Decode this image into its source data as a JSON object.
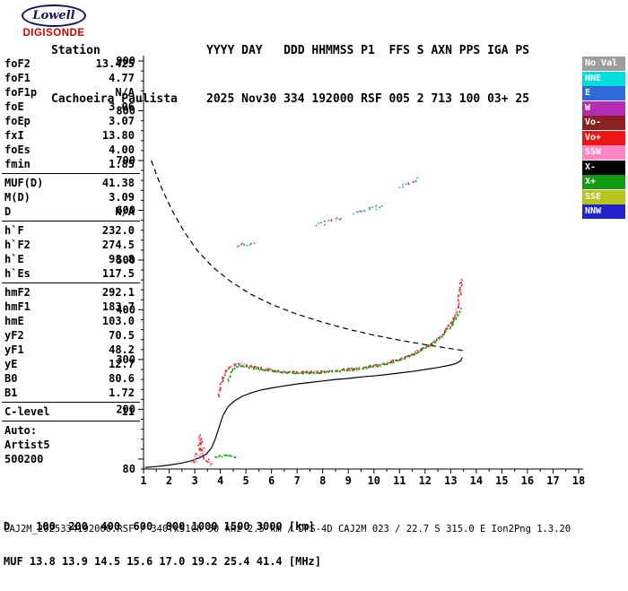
{
  "logo": {
    "brand": "Lowell",
    "product": "DIGISONDE"
  },
  "header": {
    "station_label": "Station",
    "station_name": "Cachoeira Paulista",
    "columns": [
      "YYYY",
      "DAY",
      "DDD",
      "HHMMSS",
      "P1",
      "FFS",
      "S",
      "AXN",
      "PPS",
      "IGA",
      "PS"
    ],
    "values": [
      "2025",
      "Nov30",
      "334",
      "192000",
      "RSF",
      "005",
      "2",
      "713",
      "100",
      "03+",
      "25"
    ]
  },
  "params": {
    "groups": [
      {
        "name": "frequencies",
        "rows": [
          [
            "foF2",
            "13.425"
          ],
          [
            "foF1",
            "4.77"
          ],
          [
            "foF1p",
            "N/A"
          ],
          [
            "foE",
            "3.06"
          ],
          [
            "foEp",
            "3.07"
          ],
          [
            "fxI",
            "13.80"
          ],
          [
            "foEs",
            "4.00"
          ],
          [
            "fmin",
            "1.85"
          ]
        ]
      },
      {
        "name": "muf",
        "rows": [
          [
            "MUF(D)",
            "41.38"
          ],
          [
            "M(D)",
            "3.09"
          ],
          [
            "D",
            "N/A"
          ]
        ]
      },
      {
        "name": "virtual-heights",
        "rows": [
          [
            "h`F",
            "232.0"
          ],
          [
            "h`F2",
            "274.5"
          ],
          [
            "h`E",
            "98.8"
          ],
          [
            "h`Es",
            "117.5"
          ]
        ]
      },
      {
        "name": "layer-peaks",
        "rows": [
          [
            "hmF2",
            "292.1"
          ],
          [
            "hmF1",
            "183.7"
          ],
          [
            "hmE",
            "103.0"
          ],
          [
            "yF2",
            "70.5"
          ],
          [
            "yF1",
            "48.2"
          ],
          [
            "yE",
            "12.7"
          ],
          [
            "B0",
            "80.6"
          ],
          [
            "B1",
            "1.72"
          ]
        ]
      },
      {
        "name": "confidence",
        "rows": [
          [
            "C-level",
            "11"
          ]
        ]
      }
    ],
    "footer": [
      "Auto:",
      "Artist5",
      "500200"
    ]
  },
  "legend": {
    "items": [
      {
        "label": "No Val",
        "color": "#9e9e9e"
      },
      {
        "label": "NNE",
        "color": "#00dede"
      },
      {
        "label": "E",
        "color": "#2e68d9"
      },
      {
        "label": "W",
        "color": "#b32cb3"
      },
      {
        "label": "Vo-",
        "color": "#8c2121"
      },
      {
        "label": "Vo+",
        "color": "#ee1515"
      },
      {
        "label": "SSW",
        "color": "#ff85c2"
      },
      {
        "label": "X-",
        "color": "#000000"
      },
      {
        "label": "X+",
        "color": "#119911"
      },
      {
        "label": "SSE",
        "color": "#b6c41c"
      },
      {
        "label": "NNW",
        "color": "#2323cc"
      }
    ]
  },
  "muf_table": {
    "d_label": "D",
    "d_values": [
      100,
      200,
      400,
      600,
      800,
      1000,
      1500,
      3000
    ],
    "d_unit": "[km]",
    "muf_label": "MUF",
    "muf_values": [
      13.8,
      13.9,
      14.5,
      15.6,
      17.0,
      19.2,
      25.4,
      41.4
    ],
    "muf_unit": "[MHz]"
  },
  "bottom": {
    "file_row": "CAJ2M_2025334192000.RSF / 340fx51Ch 50 kHz 2.5 km / DPS-4D CAJ2M 023 / 22.7 S 315.0 E Ion2Png 1.3.20"
  },
  "chart_data": {
    "type": "scatter",
    "title": "Digisonde ionogram",
    "xlabel": "",
    "ylabel": "",
    "x_unit": "MHz",
    "y_unit": "km",
    "xlim": [
      1,
      18
    ],
    "ylim": [
      80,
      900
    ],
    "x_ticks": [
      1,
      2,
      3,
      4,
      5,
      6,
      7,
      8,
      9,
      10,
      11,
      12,
      13,
      14,
      15,
      16,
      17,
      18
    ],
    "y_tick_labels": [
      900,
      800,
      700,
      600,
      500,
      400,
      300,
      200,
      80
    ],
    "y_minor_step": 20,
    "y_major_step": 100,
    "x_minor_step": 0.5,
    "grid": false,
    "legend_position": "right",
    "series": [
      {
        "name": "F-trace-O-mode",
        "colors": [
          "#f02020",
          "#f02020",
          "#ff7ab4"
        ],
        "dot": 1.7,
        "jitter": 1.3,
        "step": 1.6,
        "segments": [
          [
            [
              3.95,
              226
            ],
            [
              4.0,
              240
            ],
            [
              4.05,
              254
            ],
            [
              4.12,
              266
            ],
            [
              4.22,
              276
            ],
            [
              4.35,
              284
            ],
            [
              4.5,
              289
            ],
            [
              4.7,
              291
            ],
            [
              5.0,
              288
            ],
            [
              5.4,
              283
            ],
            [
              5.8,
              280
            ],
            [
              6.2,
              277
            ],
            [
              6.6,
              275
            ],
            [
              7.0,
              274
            ],
            [
              7.4,
              274
            ],
            [
              7.8,
              275
            ],
            [
              8.2,
              276
            ],
            [
              8.6,
              278
            ],
            [
              9.0,
              280
            ],
            [
              9.4,
              282
            ],
            [
              9.8,
              285
            ],
            [
              10.2,
              289
            ],
            [
              10.6,
              294
            ],
            [
              11.0,
              300
            ],
            [
              11.4,
              308
            ],
            [
              11.8,
              318
            ],
            [
              12.2,
              330
            ],
            [
              12.5,
              342
            ],
            [
              12.8,
              357
            ],
            [
              13.0,
              371
            ],
            [
              13.15,
              386
            ],
            [
              13.25,
              400
            ],
            [
              13.32,
              417
            ],
            [
              13.37,
              434
            ],
            [
              13.4,
              450
            ],
            [
              13.42,
              463
            ]
          ]
        ]
      },
      {
        "name": "F-trace-X-mode",
        "colors": [
          "#00a000"
        ],
        "dot": 1.6,
        "jitter": 1.0,
        "step": 1.9,
        "segments": [
          [
            [
              4.3,
              258
            ],
            [
              4.4,
              272
            ],
            [
              4.55,
              283
            ],
            [
              4.75,
              288
            ],
            [
              5.0,
              286
            ],
            [
              5.4,
              281
            ],
            [
              5.8,
              278
            ],
            [
              6.2,
              276
            ],
            [
              6.6,
              274
            ],
            [
              7.0,
              273
            ],
            [
              7.4,
              273
            ],
            [
              7.8,
              274
            ],
            [
              8.2,
              275
            ],
            [
              8.6,
              277
            ],
            [
              9.0,
              279
            ],
            [
              9.4,
              281
            ],
            [
              9.8,
              284
            ],
            [
              10.2,
              288
            ],
            [
              10.6,
              293
            ],
            [
              11.0,
              299
            ],
            [
              11.4,
              307
            ],
            [
              11.8,
              317
            ],
            [
              12.2,
              329
            ],
            [
              12.6,
              344
            ],
            [
              12.9,
              360
            ],
            [
              13.1,
              374
            ],
            [
              13.3,
              391
            ],
            [
              13.45,
              404
            ]
          ]
        ]
      },
      {
        "name": "Es-trace-O-mode",
        "colors": [
          "#f02020",
          "#ff7ab4"
        ],
        "dot": 1.7,
        "jitter": 2.8,
        "step": 1.5,
        "segments": [
          [
            [
              2.95,
              90
            ],
            [
              3.05,
              96
            ],
            [
              3.12,
              108
            ],
            [
              3.18,
              126
            ],
            [
              3.22,
              146
            ],
            [
              3.27,
              128
            ],
            [
              3.33,
              110
            ],
            [
              3.42,
              99
            ],
            [
              3.55,
              92
            ],
            [
              3.7,
              88
            ]
          ]
        ]
      },
      {
        "name": "Es-trace-X-mode",
        "colors": [
          "#00a000"
        ],
        "dot": 1.6,
        "jitter": 1.0,
        "step": 2.0,
        "segments": [
          [
            [
              3.8,
              103
            ],
            [
              4.0,
              106
            ],
            [
              4.2,
              107
            ],
            [
              4.45,
              106
            ],
            [
              4.65,
              104
            ]
          ]
        ]
      },
      {
        "name": "spread-F-echoes",
        "colors": [
          "#00c4c4",
          "#c233c2",
          "#11a011"
        ],
        "dot": 1.6,
        "jitter": 1.8,
        "step": 2.6,
        "segments": [
          [
            [
              4.65,
              527
            ],
            [
              4.9,
              531
            ],
            [
              5.15,
              533
            ],
            [
              5.4,
              531
            ]
          ],
          [
            [
              7.8,
              570
            ],
            [
              8.3,
              578
            ],
            [
              8.8,
              586
            ]
          ],
          [
            [
              9.2,
              592
            ],
            [
              9.8,
              601
            ],
            [
              10.4,
              610
            ]
          ],
          [
            [
              11.0,
              648
            ],
            [
              11.4,
              656
            ],
            [
              11.8,
              663
            ]
          ]
        ]
      }
    ],
    "curves": [
      {
        "name": "MUF-transmission-curve",
        "kind": "dashed",
        "points": [
          [
            1.3,
            700
          ],
          [
            1.7,
            645
          ],
          [
            2.1,
            601
          ],
          [
            2.6,
            556
          ],
          [
            3.1,
            519
          ],
          [
            3.7,
            486
          ],
          [
            4.4,
            457
          ],
          [
            5.2,
            431
          ],
          [
            6.0,
            411
          ],
          [
            7.0,
            391
          ],
          [
            8.0,
            375
          ],
          [
            9.0,
            361
          ],
          [
            10.0,
            349
          ],
          [
            11.0,
            339
          ],
          [
            12.0,
            330
          ],
          [
            13.0,
            322
          ],
          [
            13.5,
            318
          ]
        ]
      },
      {
        "name": "true-height-profile",
        "kind": "solid",
        "points": [
          [
            1.05,
            83
          ],
          [
            1.5,
            85
          ],
          [
            2.0,
            88
          ],
          [
            2.5,
            92
          ],
          [
            2.9,
            97
          ],
          [
            3.2,
            103
          ],
          [
            3.45,
            110
          ],
          [
            3.65,
            122
          ],
          [
            3.8,
            140
          ],
          [
            3.95,
            164
          ],
          [
            4.1,
            187
          ],
          [
            4.3,
            205
          ],
          [
            4.55,
            217
          ],
          [
            4.85,
            226
          ],
          [
            5.2,
            233
          ],
          [
            5.6,
            239
          ],
          [
            6.0,
            243
          ],
          [
            6.5,
            247
          ],
          [
            7.0,
            251
          ],
          [
            7.5,
            254
          ],
          [
            8.0,
            257
          ],
          [
            8.5,
            260
          ],
          [
            9.0,
            262
          ],
          [
            9.5,
            265
          ],
          [
            10.0,
            267
          ],
          [
            10.5,
            270
          ],
          [
            11.0,
            273
          ],
          [
            11.5,
            276
          ],
          [
            12.0,
            280
          ],
          [
            12.5,
            284
          ],
          [
            13.0,
            289
          ],
          [
            13.25,
            293
          ],
          [
            13.4,
            298
          ],
          [
            13.45,
            304
          ]
        ]
      }
    ]
  }
}
